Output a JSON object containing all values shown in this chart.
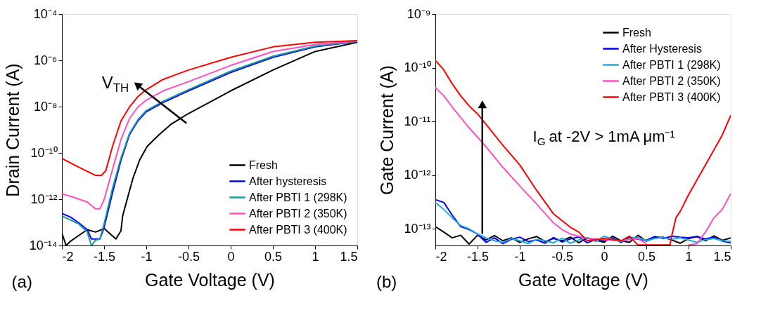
{
  "chart_data": [
    {
      "type": "line",
      "xlabel": "Gate Voltage (V)",
      "ylabel": "Drain Current (A)",
      "log": "y",
      "grid": false,
      "legend": "bottom right",
      "xlim": [
        -2,
        1.5
      ],
      "xticks": [
        -2,
        -1.5,
        -1,
        -0.5,
        0,
        0.5,
        1,
        1.5
      ],
      "ylim": [
        1e-14,
        0.0001
      ],
      "yticks": [
        {
          "value": 1e-14,
          "label": "10⁻¹⁴"
        },
        {
          "value": 1e-12,
          "label": "10⁻¹²"
        },
        {
          "value": 1e-10,
          "label": "10⁻¹⁰"
        },
        {
          "value": 1e-08,
          "label": "10⁻⁸"
        },
        {
          "value": 1e-06,
          "label": "10⁻⁶"
        },
        {
          "value": 0.0001,
          "label": "10⁻⁴"
        }
      ],
      "annotations": [
        "(a)",
        "V$_{TH}$"
      ],
      "series": [
        {
          "name": "Fresh",
          "color": "#000000",
          "x": [
            -2,
            -1.95,
            -1.9,
            -1.8,
            -1.7,
            -1.6,
            -1.5,
            -1.36,
            -1.3,
            -1.28,
            -1.25,
            -1.16,
            -1.08,
            -0.99,
            -0.85,
            -0.71,
            -0.51,
            0,
            0.5,
            1.0,
            1.5
          ],
          "values": [
            3.4e-14,
            1e-14,
            1.5e-14,
            2.7e-14,
            4.8e-14,
            3.8e-14,
            5.4e-14,
            1.9e-14,
            4.3e-14,
            1.9e-13,
            4.8e-13,
            7.6e-12,
            4.8e-11,
            1.9e-10,
            6e-10,
            1.7e-09,
            4.8e-09,
            4.8e-08,
            3.8e-07,
            2.4e-06,
            6e-06
          ]
        },
        {
          "name": "After hysteresis",
          "color": "#0000ff",
          "x": [
            -2,
            -1.9,
            -1.8,
            -1.7,
            -1.65,
            -1.55,
            -1.5,
            -1.4,
            -1.3,
            -1.2,
            -1.1,
            -1.0,
            -0.8,
            -0.5,
            0,
            0.5,
            1,
            1.5
          ],
          "values": [
            2.4e-13,
            1.7e-13,
            9.5e-14,
            4.8e-14,
            1.9e-14,
            1.9e-14,
            6e-14,
            1.9e-12,
            4.8e-11,
            6e-10,
            2.4e-09,
            6e-09,
            1.5e-08,
            4.8e-08,
            3e-07,
            1.35e-06,
            3.8e-06,
            6.5e-06
          ]
        },
        {
          "name": "After PBTI 1 (298K)",
          "color": "#1a9a9a",
          "x": [
            -2,
            -1.8,
            -1.7,
            -1.65,
            -1.6,
            -1.55,
            -1.5,
            -1.4,
            -1.3,
            -1.2,
            -1.1,
            -1.0,
            -0.8,
            -0.5,
            0,
            0.5,
            1,
            1.5
          ],
          "values": [
            1.9e-13,
            8.5e-14,
            3.8e-14,
            1e-14,
            1.7e-14,
            1.9e-14,
            8.5e-14,
            3e-12,
            6e-11,
            6.8e-10,
            2.7e-09,
            6.8e-09,
            1.7e-08,
            5.4e-08,
            3.4e-07,
            1.5e-06,
            4.1e-06,
            6.6e-06
          ]
        },
        {
          "name": "After PBTI 2 (350K)",
          "color": "#ff4fbf",
          "x": [
            -2,
            -1.9,
            -1.7,
            -1.6,
            -1.55,
            -1.5,
            -1.4,
            -1.3,
            -1.2,
            -1.1,
            -1.0,
            -0.8,
            -0.5,
            0,
            0.5,
            1,
            1.5
          ],
          "values": [
            1.7e-12,
            1.35e-12,
            7.6e-13,
            3.8e-13,
            3.8e-13,
            9.5e-13,
            1.9e-11,
            3.8e-10,
            3e-09,
            9.5e-09,
            1.9e-08,
            4.8e-08,
            1.2e-07,
            6e-07,
            2.4e-06,
            4.8e-06,
            6.8e-06
          ]
        },
        {
          "name": "After PBTI 3 (400K)",
          "color": "#ff0000",
          "x": [
            -2,
            -1.8,
            -1.6,
            -1.53,
            -1.48,
            -1.4,
            -1.3,
            -1.2,
            -1.1,
            -1.0,
            -0.8,
            -0.5,
            0,
            0.5,
            1.0,
            1.5
          ],
          "values": [
            5.8e-11,
            2.4e-11,
            1.07e-11,
            1.07e-11,
            1.7e-11,
            1.9e-10,
            2.4e-09,
            9.5e-09,
            2.7e-08,
            5.4e-08,
            1.5e-07,
            3.8e-07,
            1.35e-06,
            3.8e-06,
            6e-06,
            7.1e-06
          ]
        }
      ]
    },
    {
      "type": "line",
      "xlabel": "Gate Voltage (V)",
      "ylabel": "Gate Current (A)",
      "log": "y",
      "grid": false,
      "legend": "top right",
      "xlim": [
        -2,
        1.5
      ],
      "xticks": [
        -2,
        -1.5,
        -1,
        -0.5,
        0,
        0.5,
        1,
        1.5
      ],
      "ylim": [
        4.9e-14,
        1e-09
      ],
      "yticks": [
        {
          "value": 1e-13,
          "label": "10⁻¹³"
        },
        {
          "value": 1e-12,
          "label": "10⁻¹²"
        },
        {
          "value": 1e-11,
          "label": "10⁻¹¹"
        },
        {
          "value": 1e-10,
          "label": "10⁻¹⁰"
        },
        {
          "value": 1e-09,
          "label": "10⁻⁹"
        }
      ],
      "annotations": [
        "(b)",
        "I$_{G}$ at -2V > 1mA μm⁻¹"
      ],
      "series": [
        {
          "name": "Fresh",
          "color": "#000000",
          "x": [
            -2,
            -1.9,
            -1.8,
            -1.7,
            -1.6,
            -1.5,
            -1.4,
            -1.3,
            -1.2,
            -1.1,
            -1.0,
            -0.9,
            -0.8,
            -0.7,
            -0.6,
            -0.5,
            -0.4,
            -0.3,
            -0.2,
            -0.1,
            0,
            0.1,
            0.2,
            0.3,
            0.4,
            0.5,
            0.6,
            0.7,
            0.8,
            0.9,
            1.0,
            1.1,
            1.2,
            1.3,
            1.4,
            1.5
          ],
          "values": [
            1.1e-13,
            8.7e-14,
            6.8e-14,
            7.6e-14,
            5.2e-14,
            7.6e-14,
            6.2e-14,
            7.5e-14,
            6e-14,
            6.8e-14,
            5.6e-14,
            6.5e-14,
            7.2e-14,
            5.8e-14,
            6.6e-14,
            6e-14,
            7e-14,
            5.5e-14,
            6.8e-14,
            6.2e-14,
            5.6e-14,
            7.3e-14,
            6e-14,
            5.6e-14,
            7.6e-14,
            5.9e-14,
            6.8e-14,
            7e-14,
            6.2e-14,
            5.4e-14,
            6.6e-14,
            7.2e-14,
            6e-14,
            7.4e-14,
            6.1e-14,
            6.8e-14
          ]
        },
        {
          "name": "After Hysteresis",
          "color": "#0000ff",
          "x": [
            -2,
            -1.9,
            -1.8,
            -1.7,
            -1.6,
            -1.5,
            -1.4,
            -1.3,
            -1.2,
            -1.1,
            -1.0,
            -0.9,
            -0.8,
            -0.7,
            -0.6,
            -0.5,
            -0.4,
            -0.3,
            -0.2,
            -0.1,
            0,
            0.1,
            0.2,
            0.3,
            0.4,
            0.5,
            0.6,
            0.7,
            0.8,
            0.9,
            1.0,
            1.1,
            1.2,
            1.3,
            1.4,
            1.5
          ],
          "values": [
            3.5e-13,
            3.1e-13,
            1.8e-13,
            1.1e-13,
            9.7e-14,
            8e-14,
            5.6e-14,
            6.8e-14,
            5.3e-14,
            6.4e-14,
            7e-14,
            5.8e-14,
            6.2e-14,
            5.4e-14,
            6.9e-14,
            5.7e-14,
            6.5e-14,
            7.1e-14,
            5.5e-14,
            6.3e-14,
            6e-14,
            6.8e-14,
            5.6e-14,
            7e-14,
            6.4e-14,
            6.1e-14,
            7.2e-14,
            6.6e-14,
            7.3e-14,
            7e-14,
            6.8e-14,
            7.2e-14,
            6.5e-14,
            7e-14,
            5.9e-14,
            5.5e-14
          ]
        },
        {
          "name": "After PBTI 1 (298K)",
          "color": "#1eaadf",
          "x": [
            -2,
            -1.9,
            -1.8,
            -1.7,
            -1.6,
            -1.5,
            -1.4,
            -1.3,
            -1.2,
            -1.1,
            -1.0,
            -0.9,
            -0.8,
            -0.7,
            -0.6,
            -0.5,
            -0.4,
            -0.3,
            -0.2,
            -0.1,
            0,
            0.1,
            0.2,
            0.3,
            0.4,
            0.5,
            0.6,
            0.7,
            0.8,
            0.9,
            1.0,
            1.1,
            1.2,
            1.3,
            1.4,
            1.5
          ],
          "values": [
            3.1e-13,
            2.3e-13,
            1.6e-13,
            1.15e-13,
            1e-13,
            8e-14,
            6.8e-14,
            6e-14,
            5.6e-14,
            6.6e-14,
            6e-14,
            5.3e-14,
            6.4e-14,
            6e-14,
            5.5e-14,
            6.7e-14,
            5.4e-14,
            6.2e-14,
            6.9e-14,
            5.8e-14,
            7.3e-14,
            6.4e-14,
            5.8e-14,
            6.6e-14,
            7e-14,
            6e-14,
            6.6e-14,
            6.9e-14,
            6.4e-14,
            6.8e-14,
            6.2e-14,
            5.6e-14,
            6.3e-14,
            6.6e-14,
            6e-14,
            5.8e-14
          ]
        },
        {
          "name": "After PBTI 2 (350K)",
          "color": "#ff4fbf",
          "x": [
            -2,
            -1.9,
            -1.8,
            -1.6,
            -1.5,
            -1.4,
            -1.2,
            -1.0,
            -0.8,
            -0.6,
            -0.5,
            -0.4,
            -0.2,
            0,
            0.2,
            0.4,
            0.5,
            0.6,
            1.0,
            1.1,
            1.2,
            1.3,
            1.4,
            1.5
          ],
          "values": [
            4.3e-11,
            3e-11,
            1.86e-11,
            7.6e-12,
            5.1e-12,
            3.4e-12,
            1.4e-12,
            6.3e-13,
            2.9e-13,
            1.29e-13,
            9.7e-14,
            8e-14,
            6.6e-14,
            6.3e-14,
            6e-14,
            6.6e-14,
            5.3e-14,
            null,
            5e-14,
            5.3e-14,
            8.7e-14,
            1.6e-13,
            2.3e-13,
            4.5e-13
          ]
        },
        {
          "name": "After PBTI 3 (400K)",
          "color": "#ff0000",
          "x": [
            -2,
            -1.9,
            -1.8,
            -1.7,
            -1.6,
            -1.5,
            -1.4,
            -1.2,
            -1.0,
            -0.8,
            -0.6,
            -0.4,
            -0.3,
            -0.2,
            0,
            0.2,
            0.3,
            0.4,
            0.5,
            0.78,
            0.8,
            0.85,
            0.9,
            1.0,
            1.2,
            1.4,
            1.5
          ],
          "values": [
            1.38e-10,
            9.1e-11,
            5e-11,
            3e-11,
            1.95e-11,
            1.38e-11,
            8.9e-12,
            3.6e-12,
            1.55e-12,
            5.2e-13,
            1.9e-13,
            1.07e-13,
            8.7e-14,
            6e-14,
            6.6e-14,
            6e-14,
            7.3e-14,
            5e-14,
            5e-14,
            5e-14,
            7.3e-14,
            1.6e-13,
            2.1e-13,
            4.3e-13,
            1.55e-12,
            5.6e-12,
            1.3e-11
          ]
        }
      ]
    }
  ]
}
